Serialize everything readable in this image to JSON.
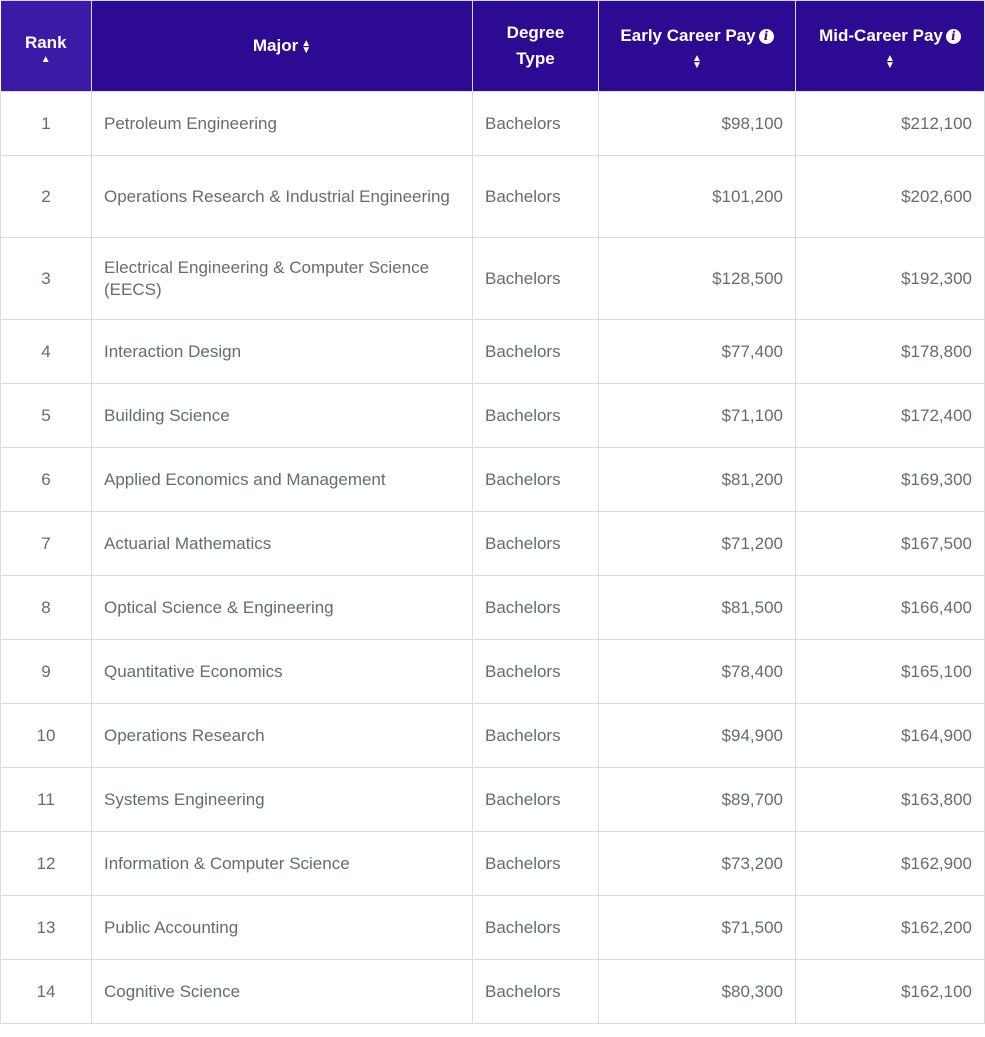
{
  "colors": {
    "header": "#2c0a92",
    "rank_header": "#3b1aa8",
    "text": "#646c73"
  },
  "headers": {
    "rank": "Rank",
    "major": "Major",
    "degree": "Degree Type",
    "early": "Early Career Pay",
    "mid": "Mid-Career Pay"
  },
  "rows": [
    {
      "rank": "1",
      "major": "Petroleum Engineering",
      "degree": "Bachelors",
      "early": "$98,100",
      "mid": "$212,100"
    },
    {
      "rank": "2",
      "major": "Operations Research & Industrial Engineering",
      "degree": "Bachelors",
      "early": "$101,200",
      "mid": "$202,600"
    },
    {
      "rank": "3",
      "major": "Electrical Engineering & Computer Science (EECS)",
      "degree": "Bachelors",
      "early": "$128,500",
      "mid": "$192,300"
    },
    {
      "rank": "4",
      "major": "Interaction Design",
      "degree": "Bachelors",
      "early": "$77,400",
      "mid": "$178,800"
    },
    {
      "rank": "5",
      "major": "Building Science",
      "degree": "Bachelors",
      "early": "$71,100",
      "mid": "$172,400"
    },
    {
      "rank": "6",
      "major": "Applied Economics and Management",
      "degree": "Bachelors",
      "early": "$81,200",
      "mid": "$169,300"
    },
    {
      "rank": "7",
      "major": "Actuarial Mathematics",
      "degree": "Bachelors",
      "early": "$71,200",
      "mid": "$167,500"
    },
    {
      "rank": "8",
      "major": "Optical Science & Engineering",
      "degree": "Bachelors",
      "early": "$81,500",
      "mid": "$166,400"
    },
    {
      "rank": "9",
      "major": "Quantitative Economics",
      "degree": "Bachelors",
      "early": "$78,400",
      "mid": "$165,100"
    },
    {
      "rank": "10",
      "major": "Operations Research",
      "degree": "Bachelors",
      "early": "$94,900",
      "mid": "$164,900"
    },
    {
      "rank": "11",
      "major": "Systems Engineering",
      "degree": "Bachelors",
      "early": "$89,700",
      "mid": "$163,800"
    },
    {
      "rank": "12",
      "major": "Information & Computer Science",
      "degree": "Bachelors",
      "early": "$73,200",
      "mid": "$162,900"
    },
    {
      "rank": "13",
      "major": "Public Accounting",
      "degree": "Bachelors",
      "early": "$71,500",
      "mid": "$162,200"
    },
    {
      "rank": "14",
      "major": "Cognitive Science",
      "degree": "Bachelors",
      "early": "$80,300",
      "mid": "$162,100"
    }
  ]
}
